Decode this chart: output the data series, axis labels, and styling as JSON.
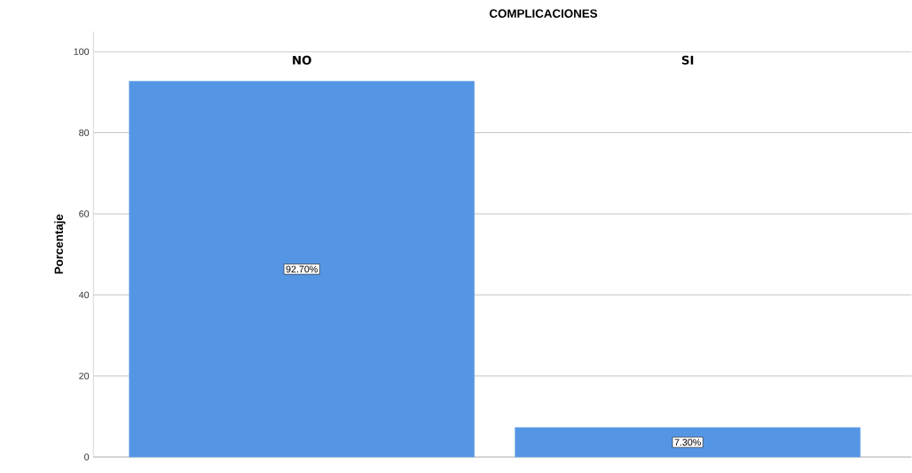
{
  "chart_data": {
    "type": "bar",
    "title": "COMPLICACIONES",
    "ylabel": "Porcentaje",
    "categories": [
      "NO",
      "SI"
    ],
    "values": [
      92.7,
      7.3
    ],
    "color": "#5596e4",
    "value_labels": [
      "92.70%",
      "7.30%"
    ],
    "ylim": [
      0,
      105
    ],
    "yticks": [
      0,
      20,
      40,
      60,
      80,
      100
    ],
    "grid": "y"
  }
}
